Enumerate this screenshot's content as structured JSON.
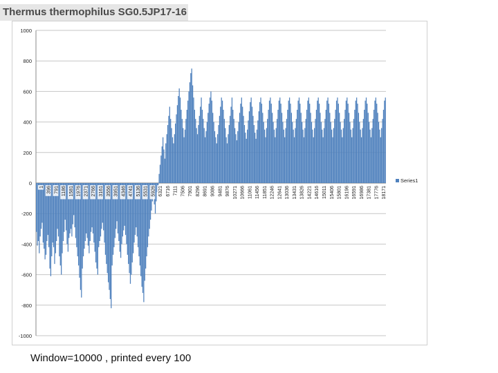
{
  "page": {
    "title": "Thermus thermophilus SG0.5JP17-16",
    "caption": "Window=10000 , printed every 100"
  },
  "colors": {
    "series": "#4f81bd",
    "grid": "#c6c6c6",
    "text": "#222222"
  },
  "chart_data": {
    "type": "bar",
    "title": "Thermus thermophilus SG0.5JP17-16",
    "xlabel": "",
    "ylabel": "",
    "ylim": [
      -1000,
      1000
    ],
    "yticks": [
      1000,
      800,
      600,
      400,
      200,
      0,
      -200,
      -400,
      -600,
      -800,
      -1000
    ],
    "grid": true,
    "legend": {
      "position": "right",
      "entries": [
        "Series1"
      ]
    },
    "x_start": 1,
    "x_step": 395,
    "x_count": 47,
    "x_tick_labels": [
      "1",
      "396",
      "791",
      "1186",
      "1581",
      "1976",
      "2371",
      "2766",
      "3161",
      "3556",
      "3951",
      "4346",
      "4741",
      "5136",
      "5531",
      "5926",
      "6321",
      "6716",
      "7111",
      "7506",
      "7901",
      "8296",
      "8691",
      "9086",
      "9481",
      "9876",
      "10271",
      "10666",
      "11061",
      "11456",
      "11851",
      "12246",
      "12641",
      "13036",
      "13431",
      "13826",
      "14221",
      "14616",
      "15011",
      "15406",
      "15801",
      "16196",
      "16591",
      "16986",
      "17381",
      "17776",
      "18171"
    ],
    "series": [
      {
        "name": "Series1",
        "x_step_points": 79,
        "values": [
          -320,
          -410,
          -380,
          -460,
          -350,
          -300,
          -260,
          -390,
          -430,
          -500,
          -470,
          -380,
          -340,
          -420,
          -560,
          -610,
          -480,
          -390,
          -420,
          -530,
          -460,
          -380,
          -300,
          -350,
          -480,
          -540,
          -600,
          -460,
          -380,
          -320,
          -240,
          -310,
          -400,
          -450,
          -360,
          -330,
          -300,
          -350,
          -270,
          -210,
          -290,
          -360,
          -420,
          -480,
          -540,
          -620,
          -700,
          -750,
          -560,
          -480,
          -430,
          -380,
          -330,
          -360,
          -410,
          -460,
          -380,
          -320,
          -290,
          -330,
          -390,
          -450,
          -520,
          -560,
          -600,
          -420,
          -380,
          -350,
          -300,
          -260,
          -310,
          -390,
          -470,
          -530,
          -590,
          -650,
          -700,
          -760,
          -820,
          -540,
          -470,
          -420,
          -360,
          -300,
          -250,
          -330,
          -380,
          -450,
          -490,
          -400,
          -350,
          -310,
          -280,
          -340,
          -400,
          -470,
          -530,
          -590,
          -660,
          -600,
          -520,
          -460,
          -390,
          -340,
          -290,
          -350,
          -420,
          -480,
          -540,
          -610,
          -680,
          -720,
          -780,
          -640,
          -560,
          -480,
          -420,
          -350,
          -300,
          -240,
          -180,
          -120,
          -90,
          -140,
          -200,
          -120,
          -60,
          -30,
          60,
          120,
          180,
          240,
          300,
          220,
          160,
          260,
          320,
          380,
          440,
          500,
          420,
          360,
          300,
          260,
          320,
          390,
          450,
          510,
          570,
          620,
          560,
          480,
          420,
          360,
          300,
          350,
          420,
          480,
          540,
          600,
          660,
          720,
          750,
          640,
          560,
          480,
          420,
          360,
          320,
          380,
          440,
          500,
          560,
          480,
          420,
          360,
          300,
          340,
          400,
          460,
          520,
          560,
          600,
          540,
          460,
          400,
          340,
          300,
          260,
          320,
          380,
          440,
          500,
          560,
          540,
          480,
          420,
          360,
          300,
          260,
          320,
          380,
          440,
          500,
          560,
          480,
          420,
          360,
          320,
          280,
          340,
          400,
          460,
          520,
          560,
          500,
          440,
          380,
          330,
          290,
          350,
          410,
          470,
          530,
          560,
          500,
          440,
          380,
          330,
          290,
          350,
          410,
          470,
          530,
          560,
          520,
          460,
          400,
          350,
          300,
          360,
          420,
          480,
          540,
          560,
          520,
          460,
          400,
          350,
          300,
          360,
          420,
          480,
          540,
          560,
          520,
          460,
          400,
          350,
          300,
          360,
          420,
          480,
          540,
          560,
          520,
          460,
          400,
          350,
          300,
          360,
          420,
          480,
          540,
          560,
          520,
          460,
          400,
          350,
          300,
          360,
          420,
          480,
          540,
          560,
          520,
          460,
          400,
          350,
          300,
          360,
          420,
          480,
          540,
          560,
          520,
          460,
          400,
          350,
          300,
          360,
          420,
          480,
          540,
          560,
          520,
          460,
          400,
          350,
          300,
          360,
          420,
          480,
          540,
          560,
          520,
          460,
          400,
          350,
          300,
          360,
          420,
          480,
          540,
          560,
          520,
          460,
          400,
          350,
          300,
          360,
          420,
          480,
          540,
          560,
          520,
          460,
          400,
          350,
          300,
          360,
          420,
          480,
          540,
          560,
          520,
          460,
          400,
          350,
          300,
          360,
          420,
          480,
          540,
          560,
          520,
          460,
          400,
          350,
          300,
          360,
          420,
          480,
          540,
          560
        ]
      }
    ]
  }
}
